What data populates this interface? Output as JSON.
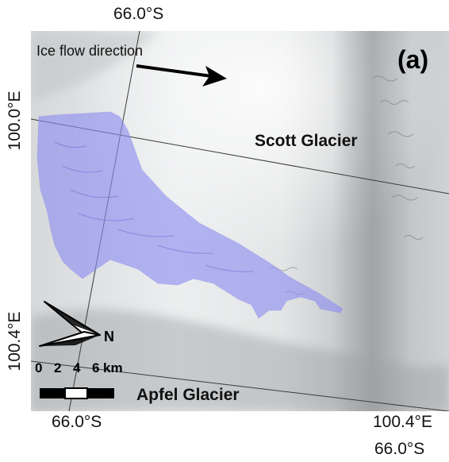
{
  "panel_label": "(a)",
  "coordinates": {
    "top": "66.0°S",
    "left_upper": "100.0°E",
    "left_lower": "100.4°E",
    "bottom_left": "66.0°S",
    "bottom_right_lon": "100.4°E",
    "bottom_right_lat": "66.0°S"
  },
  "labels": {
    "flow": "Ice flow direction",
    "scott": "Scott Glacier",
    "apfel": "Apfel Glacier"
  },
  "north_arrow": {
    "label": "N"
  },
  "scale_bar": {
    "ticks": [
      "0",
      "2",
      "4",
      "6"
    ],
    "unit": "km"
  },
  "colors": {
    "overlay": "#8c8cf0",
    "ice_light": "#f2f3f4",
    "ice_dark": "#a8abae",
    "text": "#111111"
  }
}
